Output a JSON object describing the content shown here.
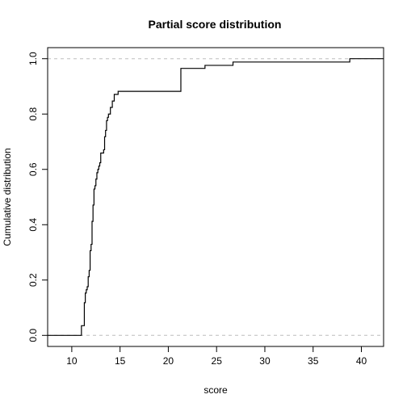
{
  "chart_data": {
    "type": "line",
    "step": true,
    "title": "Partial score distribution",
    "xlabel": "score",
    "ylabel": "Cumulative distribution",
    "xlim": [
      7.5,
      42.3
    ],
    "ylim": [
      -0.04,
      1.04
    ],
    "x_ticks": [
      10,
      15,
      20,
      25,
      30,
      35,
      40
    ],
    "x_tick_labels": [
      "10",
      "15",
      "20",
      "25",
      "30",
      "35",
      "40"
    ],
    "y_ticks": [
      0.0,
      0.2,
      0.4,
      0.6,
      0.8,
      1.0
    ],
    "y_tick_labels": [
      "0.0",
      "0.2",
      "0.4",
      "0.6",
      "0.8",
      "1.0"
    ],
    "reference_lines": [
      0,
      1
    ],
    "grid": false,
    "legend": "none",
    "line_color": "#000000",
    "reference_line_color": "#bdbdbd",
    "series": [
      {
        "x": [
          7.5,
          11.0,
          11.3,
          11.4,
          11.5,
          11.6,
          11.7,
          11.8,
          11.9,
          12.0,
          12.1,
          12.2,
          12.3,
          12.4,
          12.5,
          12.6,
          12.7,
          12.8,
          12.9,
          13.0,
          13.1,
          13.2,
          13.3,
          13.4,
          13.5,
          13.6,
          13.7,
          13.8,
          14.0,
          14.2,
          14.4,
          14.8,
          21.3,
          23.8,
          26.7,
          38.8,
          42.3
        ],
        "y": [
          0.0,
          0.035,
          0.118,
          0.153,
          0.165,
          0.176,
          0.212,
          0.235,
          0.306,
          0.329,
          0.412,
          0.471,
          0.529,
          0.541,
          0.565,
          0.588,
          0.6,
          0.612,
          0.624,
          0.659,
          0.659,
          0.659,
          0.671,
          0.718,
          0.741,
          0.776,
          0.788,
          0.8,
          0.824,
          0.847,
          0.871,
          0.882,
          0.965,
          0.976,
          0.988,
          1.0,
          1.0
        ]
      }
    ]
  }
}
